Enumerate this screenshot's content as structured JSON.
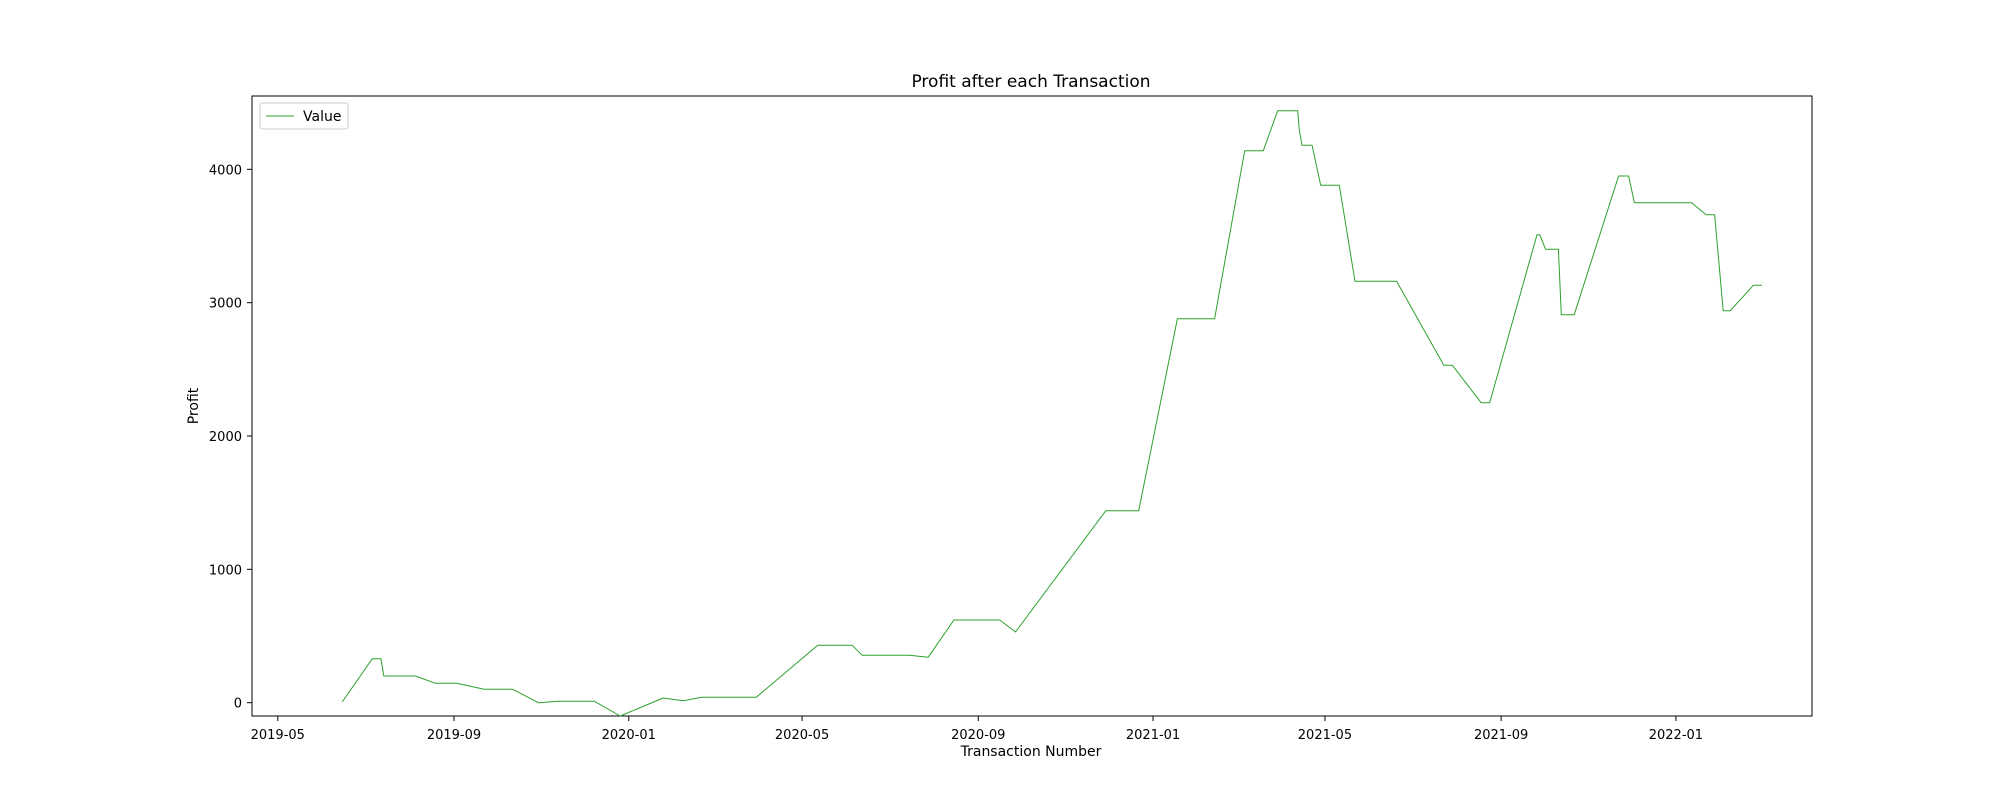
{
  "chart_data": {
    "type": "line",
    "title": "Profit after each Transaction",
    "xlabel": "Transaction Number",
    "ylabel": "Profit",
    "xlim": [
      "2019-04-13",
      "2022-04-06"
    ],
    "ylim": [
      -100,
      4550
    ],
    "x_ticks": [
      "2019-05-01",
      "2019-09-01",
      "2020-01-01",
      "2020-05-01",
      "2020-09-01",
      "2021-01-01",
      "2021-05-01",
      "2021-09-01",
      "2022-01-01"
    ],
    "x_tick_labels": [
      "2019-05",
      "2019-09",
      "2020-01",
      "2020-05",
      "2020-09",
      "2021-01",
      "2021-05",
      "2021-09",
      "2022-01"
    ],
    "y_ticks": [
      0,
      1000,
      2000,
      3000,
      4000
    ],
    "y_tick_labels": [
      "0",
      "1000",
      "2000",
      "3000",
      "4000"
    ],
    "grid": false,
    "legend": {
      "position": "top-left"
    },
    "colors": {
      "line": "#2ca02c"
    },
    "series": [
      {
        "name": "Value",
        "points": [
          [
            "2019-06-15",
            5
          ],
          [
            "2019-07-06",
            330
          ],
          [
            "2019-07-12",
            330
          ],
          [
            "2019-07-14",
            200
          ],
          [
            "2019-08-05",
            200
          ],
          [
            "2019-08-19",
            145
          ],
          [
            "2019-09-03",
            145
          ],
          [
            "2019-09-22",
            100
          ],
          [
            "2019-10-12",
            100
          ],
          [
            "2019-10-30",
            0
          ],
          [
            "2019-11-13",
            10
          ],
          [
            "2019-12-08",
            10
          ],
          [
            "2019-12-26",
            -100
          ],
          [
            "2020-01-25",
            35
          ],
          [
            "2020-02-08",
            15
          ],
          [
            "2020-02-21",
            40
          ],
          [
            "2020-03-30",
            40
          ],
          [
            "2020-05-12",
            430
          ],
          [
            "2020-06-05",
            430
          ],
          [
            "2020-06-12",
            355
          ],
          [
            "2020-07-15",
            355
          ],
          [
            "2020-07-28",
            340
          ],
          [
            "2020-08-15",
            620
          ],
          [
            "2020-09-16",
            620
          ],
          [
            "2020-09-27",
            530
          ],
          [
            "2020-11-29",
            1440
          ],
          [
            "2020-12-22",
            1440
          ],
          [
            "2021-01-18",
            2880
          ],
          [
            "2021-02-13",
            2880
          ],
          [
            "2021-03-06",
            4140
          ],
          [
            "2021-03-19",
            4140
          ],
          [
            "2021-03-29",
            4440
          ],
          [
            "2021-04-12",
            4440
          ],
          [
            "2021-04-13",
            4300
          ],
          [
            "2021-04-15",
            4180
          ],
          [
            "2021-04-22",
            4180
          ],
          [
            "2021-04-28",
            3880
          ],
          [
            "2021-05-11",
            3880
          ],
          [
            "2021-05-22",
            3160
          ],
          [
            "2021-06-20",
            3160
          ],
          [
            "2021-07-23",
            2530
          ],
          [
            "2021-07-29",
            2530
          ],
          [
            "2021-08-18",
            2250
          ],
          [
            "2021-08-24",
            2250
          ],
          [
            "2021-09-26",
            3510
          ],
          [
            "2021-09-28",
            3510
          ],
          [
            "2021-10-02",
            3400
          ],
          [
            "2021-10-11",
            3400
          ],
          [
            "2021-10-13",
            2910
          ],
          [
            "2021-10-22",
            2910
          ],
          [
            "2021-11-22",
            3950
          ],
          [
            "2021-11-29",
            3950
          ],
          [
            "2021-12-03",
            3750
          ],
          [
            "2021-12-15",
            3750
          ],
          [
            "2022-01-12",
            3750
          ],
          [
            "2022-01-22",
            3660
          ],
          [
            "2022-01-28",
            3660
          ],
          [
            "2022-02-03",
            2940
          ],
          [
            "2022-02-08",
            2940
          ],
          [
            "2022-02-24",
            3130
          ],
          [
            "2022-03-02",
            3130
          ]
        ]
      }
    ]
  }
}
